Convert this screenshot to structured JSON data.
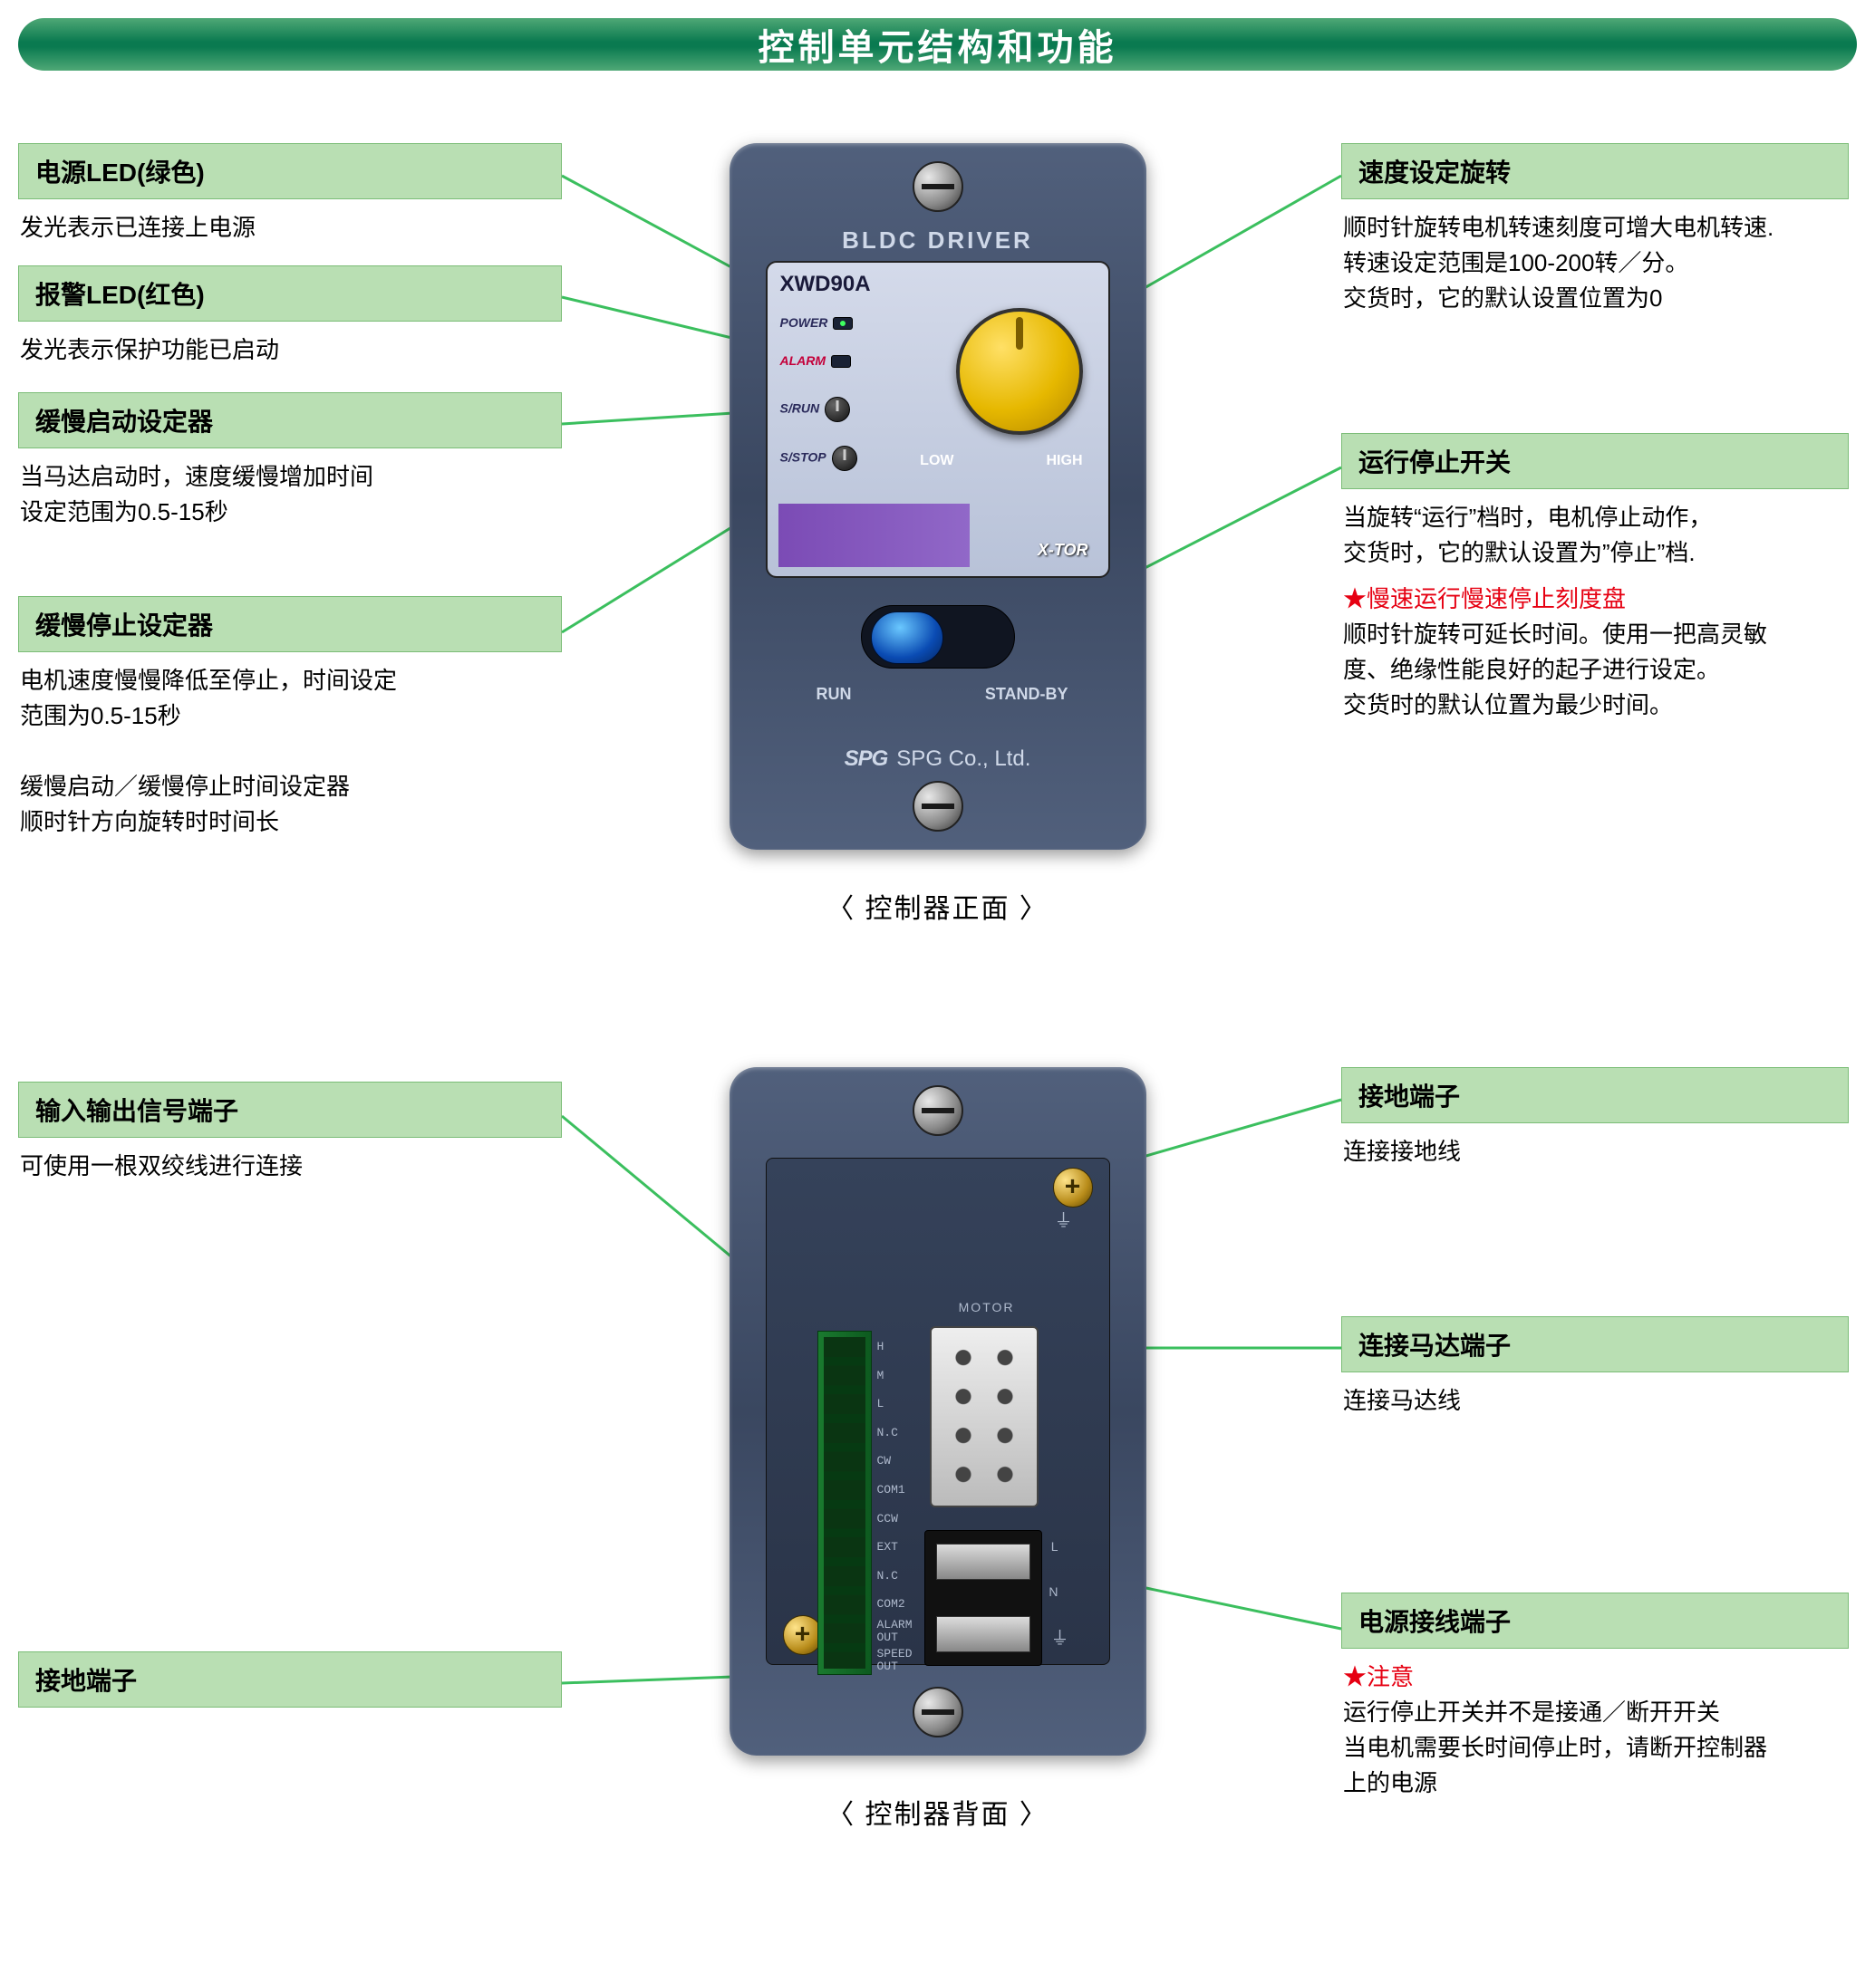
{
  "title": "控制单元结构和功能",
  "colors": {
    "title_gradient_top": "#4fa876",
    "title_gradient_mid": "#0a7a50",
    "callout_bg": "#b9dfb3",
    "callout_border": "#7bbd77",
    "leader_line": "#3bbf5e",
    "leader_dot": "#2fb34f",
    "star": "#e60012",
    "device_body": "#44526d",
    "panel_bg": "#c8d0e2",
    "knob": "#e6c233",
    "purple": "#7b4bb5",
    "slider": "#0a4bb3"
  },
  "front": {
    "caption": "〈 控制器正面 〉",
    "device_title": "BLDC  DRIVER",
    "model": "XWD90A",
    "labels": {
      "power": "POWER",
      "alarm": "ALARM",
      "srun": "S/RUN",
      "sstop": "S/STOP",
      "low": "LOW",
      "high": "HIGH",
      "xtor": "X-TOR",
      "run": "RUN",
      "standby": "STAND-BY",
      "spg": "SPG Co.,  Ltd.",
      "spg_logo": "SPG"
    },
    "callouts_left": [
      {
        "title": "电源LED(绿色)",
        "body": "发光表示已连接上电源"
      },
      {
        "title": "报警LED(红色)",
        "body": "发光表示保护功能已启动"
      },
      {
        "title": "缓慢启动设定器",
        "body": "当马达启动时，速度缓慢增加时间\n设定范围为0.5-15秒"
      },
      {
        "title": "缓慢停止设定器",
        "body": "电机速度慢慢降低至停止，时间设定\n范围为0.5-15秒\n\n缓慢启动／缓慢停止时间设定器\n顺时针方向旋转时时间长"
      }
    ],
    "callouts_right": [
      {
        "title": "速度设定旋转",
        "body": "顺时针旋转电机转速刻度可增大电机转速.\n转速设定范围是100-200转／分。\n交货时，它的默认设置位置为0"
      },
      {
        "title": "运行停止开关",
        "body": "当旋转“运行”档时，电机停止动作，\n交货时，它的默认设置为”停止”档.",
        "star_title": "★慢速运行慢速停止刻度盘",
        "star_body": "顺时针旋转可延长时间。使用一把高灵敏\n度、绝缘性能良好的起子进行设定。\n交货时的默认位置为最少时间。"
      }
    ]
  },
  "back": {
    "caption": "〈 控制器背面 〉",
    "motor_label": "MOTOR",
    "terminal_labels": [
      "H",
      "M",
      "L",
      "N.C",
      "CW",
      "COM1",
      "CCW",
      "EXT",
      "N.C",
      "COM2",
      "ALARM\nOUT",
      "SPEED\nOUT"
    ],
    "power_labels": {
      "l": "L",
      "n": "N"
    },
    "callouts_left": [
      {
        "title": "输入输出信号端子",
        "body": "可使用一根双绞线进行连接"
      },
      {
        "title": "接地端子",
        "body": ""
      }
    ],
    "callouts_right": [
      {
        "title": "接地端子",
        "body": "连接接地线"
      },
      {
        "title": "连接马达端子",
        "body": "连接马达线"
      },
      {
        "title": "电源接线端子",
        "body": "",
        "star_title": "★注意",
        "star_body": "运行停止开关并不是接通／断开开关\n当电机需要长时间停止时，请断开控制器\n上的电源"
      }
    ]
  }
}
